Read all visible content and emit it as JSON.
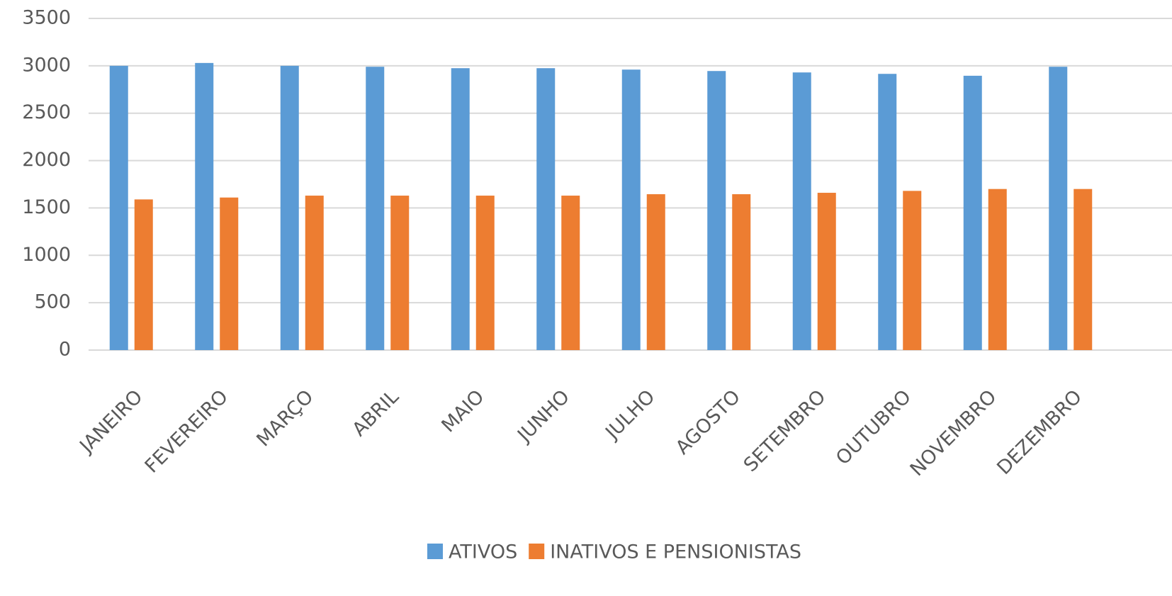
{
  "chart_data": {
    "type": "bar",
    "categories": [
      "JANEIRO",
      "FEVEREIRO",
      "MARÇO",
      "ABRIL",
      "MAIO",
      "JUNHO",
      "JULHO",
      "AGOSTO",
      "SETEMBRO",
      "OUTUBRO",
      "NOVEMBRO",
      "DEZEMBRO"
    ],
    "series": [
      {
        "name": "ATIVOS",
        "color": "#5b9bd5",
        "values": [
          3000,
          3030,
          3000,
          2990,
          2975,
          2975,
          2960,
          2945,
          2930,
          2915,
          2895,
          2990
        ]
      },
      {
        "name": "INATIVOS E PENSIONISTAS",
        "color": "#ed7d31",
        "values": [
          1590,
          1610,
          1630,
          1630,
          1630,
          1630,
          1645,
          1645,
          1660,
          1680,
          1700,
          1700
        ]
      }
    ],
    "ylim": [
      0,
      3500
    ],
    "yticks": [
      0,
      500,
      1000,
      1500,
      2000,
      2500,
      3000,
      3500
    ],
    "grid": true,
    "legend": "bottom"
  }
}
